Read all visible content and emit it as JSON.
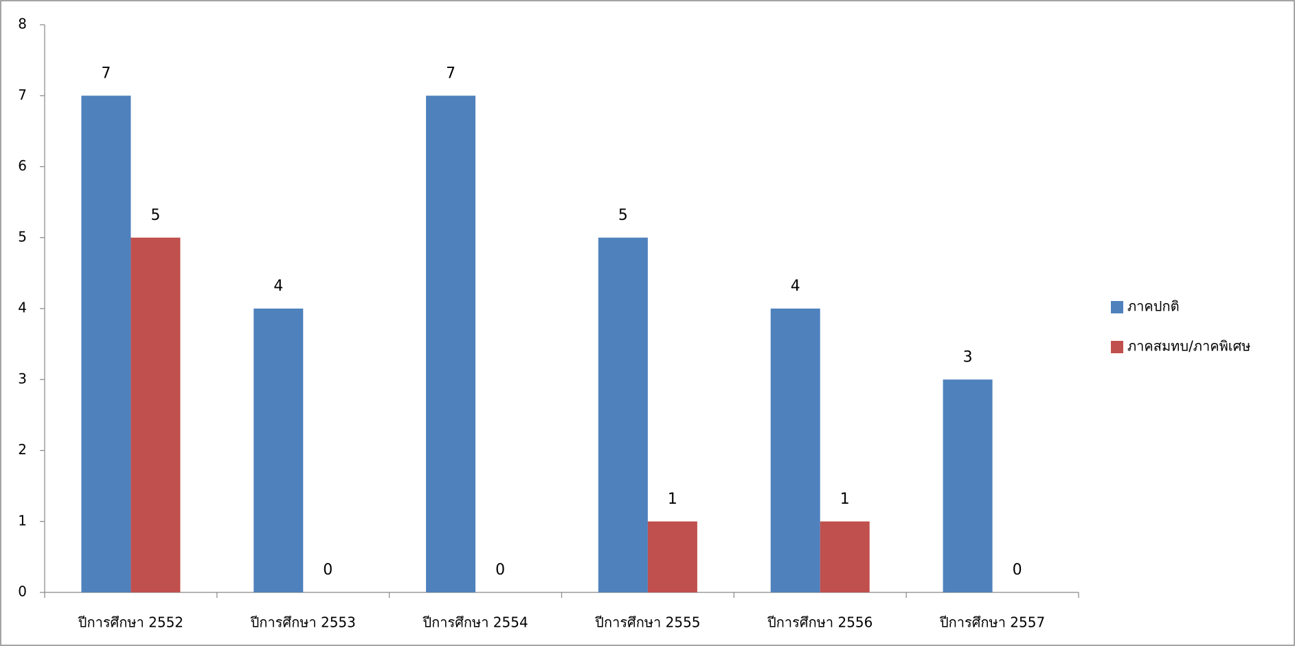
{
  "chart_data": {
    "type": "bar",
    "categories": [
      "ปีการศึกษา 2552",
      "ปีการศึกษา 2553",
      "ปีการศึกษา 2554",
      "ปีการศึกษา 2555",
      "ปีการศึกษา 2556",
      "ปีการศึกษา 2557"
    ],
    "series": [
      {
        "name": "ภาคปกติ",
        "color": "#4f81bd",
        "values": [
          7,
          4,
          7,
          5,
          4,
          3
        ]
      },
      {
        "name": "ภาคสมทบ/ภาคพิเศษ",
        "color": "#c0504d",
        "values": [
          5,
          0,
          0,
          1,
          1,
          0
        ]
      }
    ],
    "ylim": [
      0,
      8
    ],
    "yticks": [
      0,
      1,
      2,
      3,
      4,
      5,
      6,
      7,
      8
    ],
    "grid": false,
    "legend": "right"
  }
}
